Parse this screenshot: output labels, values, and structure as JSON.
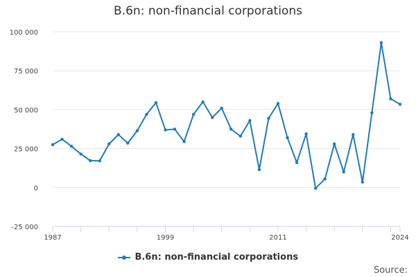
{
  "chart_data": {
    "type": "line",
    "title": "B.6n: non-financial corporations",
    "x_tick_labels": [
      "1987",
      "1999",
      "2011",
      "2024"
    ],
    "y_tick_labels": [
      "100 000",
      "75 000",
      "50 000",
      "25 000",
      "0",
      "-25 000"
    ],
    "ylim": [
      -25000,
      100000
    ],
    "xlim": [
      1987,
      2024
    ],
    "grid": true,
    "legend_position": "bottom-center",
    "series": [
      {
        "name": "B.6n: non-financial corporations",
        "color": "#1f7bb5",
        "x": [
          1987,
          1988,
          1989,
          1990,
          1991,
          1992,
          1993,
          1994,
          1995,
          1996,
          1997,
          1998,
          1999,
          2000,
          2001,
          2002,
          2003,
          2004,
          2005,
          2006,
          2007,
          2008,
          2009,
          2010,
          2011,
          2012,
          2013,
          2014,
          2015,
          2016,
          2017,
          2018,
          2019,
          2020,
          2021,
          2022,
          2023,
          2024
        ],
        "values": [
          27500,
          31000,
          26500,
          21500,
          17300,
          17100,
          28000,
          34000,
          28500,
          36500,
          47000,
          54500,
          37000,
          37500,
          29500,
          47000,
          55000,
          45000,
          51000,
          37500,
          33000,
          43000,
          11500,
          44500,
          54000,
          32000,
          16000,
          34500,
          -500,
          5500,
          28000,
          10000,
          34000,
          3500,
          48000,
          93000,
          57000,
          53500
        ]
      }
    ]
  },
  "legend": {
    "label": "B.6n: non-financial corporations"
  },
  "footer": {
    "source_label": "Source:"
  }
}
